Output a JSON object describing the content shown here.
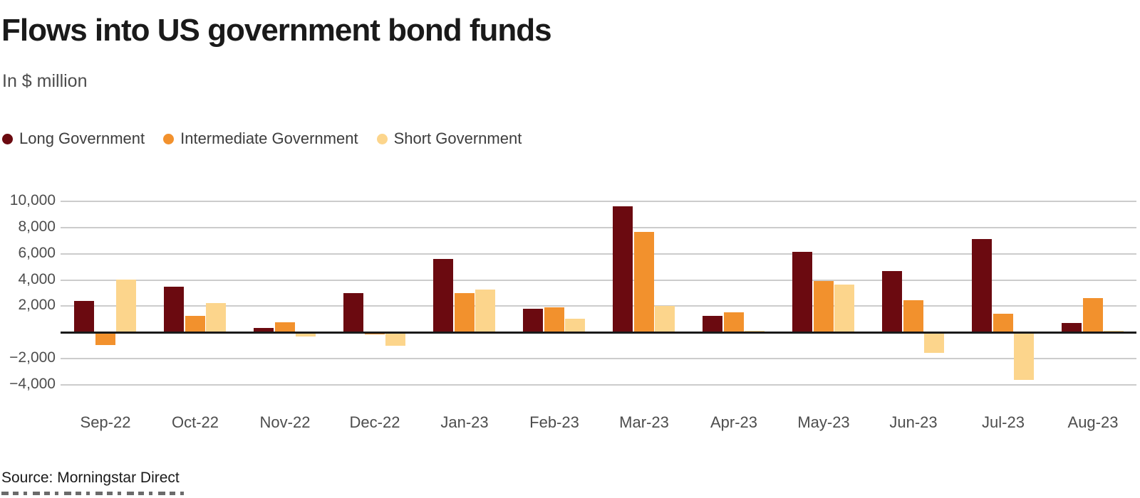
{
  "header": {
    "title": "Flows into US government bond funds",
    "subtitle": "In $ million"
  },
  "legend": {
    "items": [
      {
        "label": "Long Government",
        "color": "#6b0a10"
      },
      {
        "label": "Intermediate Government",
        "color": "#f2912d"
      },
      {
        "label": "Short Government",
        "color": "#fcd58c"
      }
    ]
  },
  "chart_data": {
    "type": "bar",
    "title": "Flows into US government bond funds",
    "subtitle": "In $ million",
    "categories": [
      "Sep-22",
      "Oct-22",
      "Nov-22",
      "Dec-22",
      "Jan-23",
      "Feb-23",
      "Mar-23",
      "Apr-23",
      "May-23",
      "Jun-23",
      "Jul-23",
      "Aug-23"
    ],
    "series": [
      {
        "name": "Long Government",
        "color": "#6b0a10",
        "values": [
          2400,
          3500,
          350,
          3000,
          5600,
          1800,
          9600,
          1250,
          6150,
          4700,
          7100,
          700
        ]
      },
      {
        "name": "Intermediate Government",
        "color": "#f2912d",
        "values": [
          -950,
          1250,
          800,
          -150,
          3000,
          1900,
          7650,
          1550,
          3900,
          2450,
          1450,
          2600
        ]
      },
      {
        "name": "Short Government",
        "color": "#fcd58c",
        "values": [
          4050,
          2250,
          -300,
          -1000,
          3250,
          1050,
          2050,
          150,
          3650,
          -1550,
          -3600,
          150
        ]
      }
    ],
    "xlabel": "",
    "ylabel": "",
    "ylim": [
      -4000,
      10000
    ],
    "yticks": [
      10000,
      8000,
      6000,
      4000,
      2000,
      -2000,
      -4000
    ],
    "ytick_labels": [
      "10,000",
      "8,000",
      "6,000",
      "4,000",
      "2,000",
      "−2,000",
      "−4,000"
    ],
    "grid": true,
    "legend_position": "top",
    "zero_line": true
  },
  "footer": {
    "source": "Source: Morningstar Direct"
  },
  "colors": {
    "long_government": "#6b0a10",
    "intermediate_government": "#f2912d",
    "short_government": "#fcd58c",
    "gridline": "#cccccc",
    "zero_line": "#1a1a1a",
    "title_text": "#1a1a1a",
    "axis_text": "#4d4d4d"
  }
}
